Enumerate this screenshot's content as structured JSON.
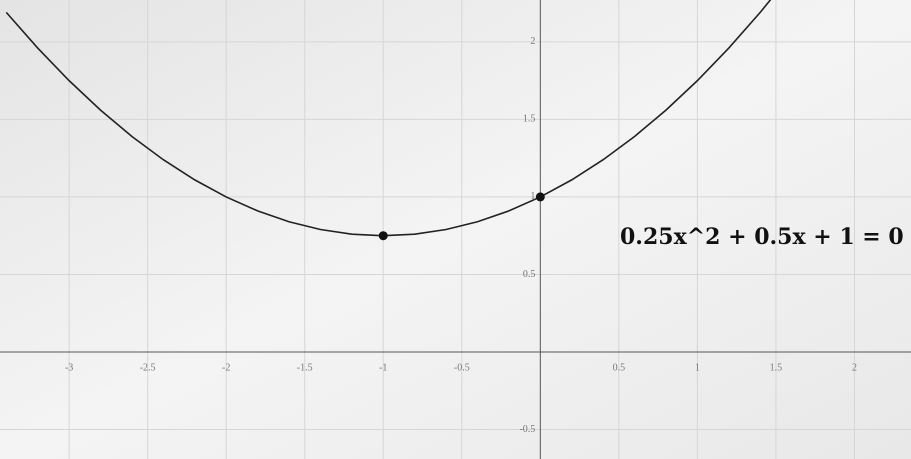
{
  "chart_data": {
    "type": "line",
    "annotation": "0.25x^2 + 0.5x + 1 = 0",
    "x": [
      -3.4,
      -3.2,
      -3.0,
      -2.8,
      -2.6,
      -2.4,
      -2.2,
      -2.0,
      -1.8,
      -1.6,
      -1.4,
      -1.2,
      -1.0,
      -0.8,
      -0.6,
      -0.4,
      -0.2,
      0,
      0.2,
      0.4,
      0.6,
      0.8,
      1.0,
      1.2,
      1.4,
      1.6
    ],
    "series": [
      {
        "color": "#222222",
        "values": [
          2.19,
          1.96,
          1.75,
          1.56,
          1.39,
          1.24,
          1.11,
          1.0,
          0.91,
          0.84,
          0.79,
          0.76,
          0.75,
          0.76,
          0.79,
          0.84,
          0.91,
          1.0,
          1.11,
          1.24,
          1.39,
          1.56,
          1.75,
          1.96,
          2.19,
          2.44
        ]
      }
    ],
    "points": {
      "color": "#111111",
      "x": [
        -1,
        0
      ],
      "values": [
        0.75,
        1
      ]
    },
    "xlim": [
      -3.44,
      2.36
    ],
    "ylim": [
      -0.69,
      2.27
    ],
    "xticks": [
      -3,
      -2.5,
      -2,
      -1.5,
      -1,
      -0.5,
      0.5,
      1,
      1.5,
      2
    ],
    "yticks": [
      -0.5,
      0.5,
      1,
      1.5,
      2
    ],
    "grid": true
  }
}
